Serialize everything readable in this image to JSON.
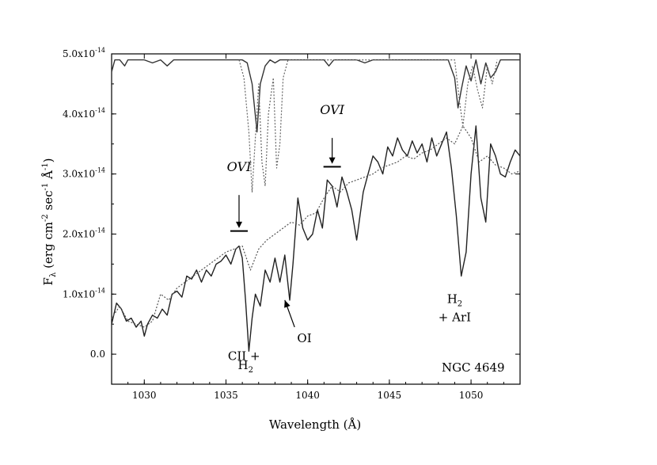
{
  "chart_data": {
    "type": "line",
    "object_label": "NGC 4649",
    "xlabel": "Wavelength (Å)",
    "ylabel": {
      "main": "F",
      "sub": "λ",
      "units_open": " (erg cm",
      "units_exp1": "-2",
      "units_mid": " sec",
      "units_exp2": "-1",
      "units_A": " Å",
      "units_exp3": "-1",
      "units_close": ")"
    },
    "xlim": [
      1028,
      1053
    ],
    "ylim": [
      -5e-15,
      5e-14
    ],
    "x_ticks": [
      {
        "value": 1030,
        "label": "1030"
      },
      {
        "value": 1035,
        "label": "1035"
      },
      {
        "value": 1040,
        "label": "1040"
      },
      {
        "value": 1045,
        "label": "1045"
      },
      {
        "value": 1050,
        "label": "1050"
      }
    ],
    "y_ticks": [
      {
        "value": 0,
        "label": "0.0",
        "exp": ""
      },
      {
        "value": 1e-14,
        "label": "1.0x10",
        "exp": "-14"
      },
      {
        "value": 2e-14,
        "label": "2.0x10",
        "exp": "-14"
      },
      {
        "value": 3e-14,
        "label": "3.0x10",
        "exp": "-14"
      },
      {
        "value": 4e-14,
        "label": "4.0x10",
        "exp": "-14"
      },
      {
        "value": 5e-14,
        "label": "5.0x10",
        "exp": "-14"
      }
    ],
    "series": [
      {
        "style": "solid",
        "color": "#222222",
        "x": [
          1028.0,
          1028.3,
          1028.6,
          1028.9,
          1029.2,
          1029.5,
          1029.8,
          1030.0,
          1030.2,
          1030.5,
          1030.8,
          1031.1,
          1031.4,
          1031.7,
          1032.0,
          1032.3,
          1032.6,
          1032.9,
          1033.2,
          1033.5,
          1033.8,
          1034.1,
          1034.4,
          1034.7,
          1035.0,
          1035.3,
          1035.6,
          1035.8,
          1036.0,
          1036.2,
          1036.4,
          1036.6,
          1036.8,
          1037.1,
          1037.4,
          1037.7,
          1038.0,
          1038.3,
          1038.6,
          1038.9,
          1039.1,
          1039.4,
          1039.7,
          1040.0,
          1040.3,
          1040.6,
          1040.9,
          1041.2,
          1041.5,
          1041.8,
          1042.1,
          1042.4,
          1042.7,
          1043.0,
          1043.4,
          1043.7,
          1044.0,
          1044.3,
          1044.6,
          1044.9,
          1045.2,
          1045.5,
          1045.8,
          1046.1,
          1046.4,
          1046.7,
          1047.0,
          1047.3,
          1047.6,
          1047.9,
          1048.2,
          1048.5,
          1048.8,
          1049.1,
          1049.4,
          1049.7,
          1050.0,
          1050.3,
          1050.6,
          1050.9,
          1051.2,
          1051.5,
          1051.8,
          1052.1,
          1052.4,
          1052.7,
          1053.0
        ],
        "y": [
          5e-15,
          8.5e-15,
          7.5e-15,
          5.5e-15,
          6e-15,
          4.5e-15,
          5.5e-15,
          3e-15,
          5e-15,
          6.5e-15,
          6e-15,
          7.5e-15,
          6.5e-15,
          1e-14,
          1.05e-14,
          9.5e-15,
          1.3e-14,
          1.25e-14,
          1.4e-14,
          1.2e-14,
          1.4e-14,
          1.3e-14,
          1.5e-14,
          1.55e-14,
          1.65e-14,
          1.5e-14,
          1.75e-14,
          1.8e-14,
          1.6e-14,
          9e-15,
          5e-16,
          6e-15,
          1e-14,
          8e-15,
          1.4e-14,
          1.2e-14,
          1.6e-14,
          1.2e-14,
          1.65e-14,
          9e-15,
          1.5e-14,
          2.6e-14,
          2.1e-14,
          1.9e-14,
          2e-14,
          2.4e-14,
          2.1e-14,
          2.9e-14,
          2.8e-14,
          2.45e-14,
          2.95e-14,
          2.7e-14,
          2.4e-14,
          1.9e-14,
          2.7e-14,
          3e-14,
          3.3e-14,
          3.2e-14,
          3e-14,
          3.45e-14,
          3.3e-14,
          3.6e-14,
          3.4e-14,
          3.3e-14,
          3.55e-14,
          3.35e-14,
          3.5e-14,
          3.2e-14,
          3.6e-14,
          3.3e-14,
          3.5e-14,
          3.7e-14,
          3.1e-14,
          2.3e-14,
          1.3e-14,
          1.7e-14,
          3e-14,
          3.8e-14,
          2.6e-14,
          2.2e-14,
          3.5e-14,
          3.3e-14,
          3e-14,
          2.95e-14,
          3.2e-14,
          3.4e-14,
          3.3e-14
        ]
      },
      {
        "style": "dotted",
        "color": "#555555",
        "x": [
          1028.0,
          1028.5,
          1029.0,
          1029.5,
          1030.0,
          1030.5,
          1031.0,
          1031.5,
          1032.0,
          1032.5,
          1033.0,
          1033.5,
          1034.0,
          1034.5,
          1035.0,
          1035.5,
          1036.0,
          1036.5,
          1037.0,
          1037.5,
          1038.0,
          1038.5,
          1039.0,
          1039.5,
          1040.0,
          1040.5,
          1041.0,
          1041.5,
          1042.0,
          1042.5,
          1043.0,
          1043.5,
          1044.0,
          1044.5,
          1045.0,
          1045.5,
          1046.0,
          1046.5,
          1047.0,
          1047.5,
          1048.0,
          1048.5,
          1049.0,
          1049.5,
          1050.0,
          1050.5,
          1051.0,
          1051.5,
          1052.0,
          1052.5,
          1053.0
        ],
        "y": [
          6e-15,
          8e-15,
          5.5e-15,
          5e-15,
          4.5e-15,
          5.5e-15,
          1e-14,
          9e-15,
          1.1e-14,
          1.2e-14,
          1.3e-14,
          1.4e-14,
          1.5e-14,
          1.6e-14,
          1.7e-14,
          1.75e-14,
          1.8e-14,
          1.4e-14,
          1.75e-14,
          1.9e-14,
          2e-14,
          2.1e-14,
          2.2e-14,
          2.15e-14,
          2.3e-14,
          2.35e-14,
          2.6e-14,
          2.8e-14,
          2.7e-14,
          2.85e-14,
          2.9e-14,
          2.95e-14,
          3e-14,
          3.1e-14,
          3.15e-14,
          3.2e-14,
          3.3e-14,
          3.25e-14,
          3.35e-14,
          3.4e-14,
          3.5e-14,
          3.6e-14,
          3.5e-14,
          3.8e-14,
          3.6e-14,
          3.2e-14,
          3.3e-14,
          3.15e-14,
          3.1e-14,
          3e-14,
          3.05e-14
        ]
      },
      {
        "style": "solid",
        "color": "#333333",
        "x": [
          1028.0,
          1028.2,
          1028.5,
          1028.8,
          1029.0,
          1029.5,
          1030.0,
          1030.5,
          1031.0,
          1031.4,
          1031.8,
          1032.5,
          1033.0,
          1034.0,
          1035.0,
          1036.0,
          1036.3,
          1036.6,
          1036.9,
          1037.1,
          1037.4,
          1037.7,
          1038.0,
          1038.3,
          1038.6,
          1039.0,
          1039.5,
          1040.0,
          1041.0,
          1041.3,
          1041.6,
          1042.0,
          1043.0,
          1043.5,
          1044.0,
          1045.0,
          1046.0,
          1047.0,
          1048.0,
          1048.6,
          1049.0,
          1049.2,
          1049.4,
          1049.7,
          1050.0,
          1050.3,
          1050.6,
          1050.9,
          1051.2,
          1051.5,
          1051.8,
          1052.2,
          1053.0
        ],
        "y": [
          4.7e-14,
          4.9e-14,
          4.9e-14,
          4.8e-14,
          4.9e-14,
          4.9e-14,
          4.9e-14,
          4.85e-14,
          4.9e-14,
          4.8e-14,
          4.9e-14,
          4.9e-14,
          4.9e-14,
          4.9e-14,
          4.9e-14,
          4.9e-14,
          4.85e-14,
          4.5e-14,
          3.7e-14,
          4.5e-14,
          4.8e-14,
          4.9e-14,
          4.85e-14,
          4.9e-14,
          4.9e-14,
          4.9e-14,
          4.9e-14,
          4.9e-14,
          4.9e-14,
          4.8e-14,
          4.9e-14,
          4.9e-14,
          4.9e-14,
          4.85e-14,
          4.9e-14,
          4.9e-14,
          4.9e-14,
          4.9e-14,
          4.9e-14,
          4.9e-14,
          4.6e-14,
          4.1e-14,
          4.4e-14,
          4.8e-14,
          4.55e-14,
          4.9e-14,
          4.5e-14,
          4.85e-14,
          4.6e-14,
          4.7e-14,
          4.9e-14,
          4.9e-14,
          4.9e-14
        ]
      },
      {
        "style": "dotted",
        "color": "#666666",
        "x": [
          1035.8,
          1036.1,
          1036.4,
          1036.6,
          1036.8,
          1037.0,
          1037.2,
          1037.4,
          1037.6,
          1037.9,
          1038.1,
          1038.3,
          1038.5,
          1038.8,
          1049.0,
          1049.3,
          1049.5,
          1049.8,
          1050.1,
          1050.4,
          1050.7,
          1051.0,
          1051.3,
          1051.6
        ],
        "y": [
          4.9e-14,
          4.6e-14,
          3.7e-14,
          2.7e-14,
          3.6e-14,
          4.5e-14,
          3.2e-14,
          2.8e-14,
          4e-14,
          4.6e-14,
          3.1e-14,
          3.5e-14,
          4.6e-14,
          4.9e-14,
          4.9e-14,
          4.2e-14,
          3.8e-14,
          4.5e-14,
          4.8e-14,
          4.4e-14,
          4.1e-14,
          4.8e-14,
          4.5e-14,
          4.9e-14
        ]
      }
    ],
    "annotations": [
      {
        "text": "OVI",
        "style": "italic",
        "x": 1035.8,
        "y": 3.05e-14
      },
      {
        "text": "OVI",
        "style": "italic",
        "x": 1041.5,
        "y": 4e-14
      },
      {
        "text": "CII +",
        "style": "normal",
        "x": 1036.1,
        "y": -1e-15
      },
      {
        "text": "H",
        "sub": "2",
        "style": "normal",
        "x": 1036.2,
        "y": -2.5e-15
      },
      {
        "text": "OI",
        "style": "normal",
        "x": 1039.8,
        "y": 2e-15
      },
      {
        "text": "H",
        "sub": "2",
        "style": "normal",
        "x": 1049.0,
        "y": 8.5e-15
      },
      {
        "text": "+ ArI",
        "style": "normal",
        "x": 1049.0,
        "y": 5.5e-15
      }
    ],
    "markers": [
      {
        "kind": "bar-arrow",
        "x": 1035.8,
        "bar_y": 2.05e-14,
        "arrow_from": 2.65e-14,
        "arrow_to": 2.1e-14
      },
      {
        "kind": "bar-arrow",
        "x": 1041.5,
        "bar_y": 3.12e-14,
        "arrow_from": 3.6e-14,
        "arrow_to": 3.17e-14
      },
      {
        "kind": "arrow",
        "x_from": 1039.2,
        "y_from": 4.5e-15,
        "x_to": 1038.6,
        "y_to": 9e-15
      }
    ]
  }
}
